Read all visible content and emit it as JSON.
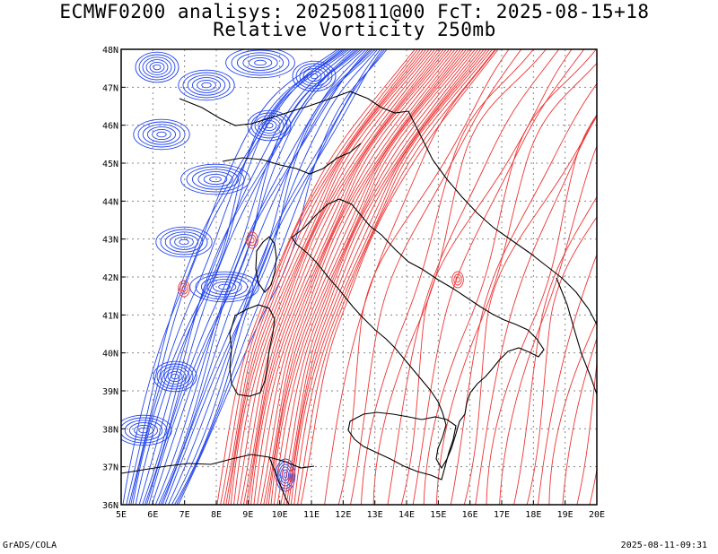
{
  "title_line1": "ECMWF0200 analisys: 20250811@00 FcT: 2025-08-15+18",
  "title_line2": "Relative Vorticity 250mb",
  "footer_left": "GrADS/COLA",
  "footer_right": "2025-08-11-09:31",
  "map": {
    "lon_range": [
      5,
      20
    ],
    "lat_range": [
      36,
      48
    ],
    "lon_ticks": [
      "5E",
      "6E",
      "7E",
      "8E",
      "9E",
      "10E",
      "11E",
      "12E",
      "13E",
      "14E",
      "15E",
      "16E",
      "17E",
      "18E",
      "19E",
      "20E"
    ],
    "lat_ticks": [
      "36N",
      "37N",
      "38N",
      "39N",
      "40N",
      "41N",
      "42N",
      "43N",
      "44N",
      "45N",
      "46N",
      "47N",
      "48N"
    ],
    "grid_lines": "dotted",
    "positive_color": "#ee3333",
    "negative_color": "#2244ee",
    "coastline_color": "#000000"
  }
}
